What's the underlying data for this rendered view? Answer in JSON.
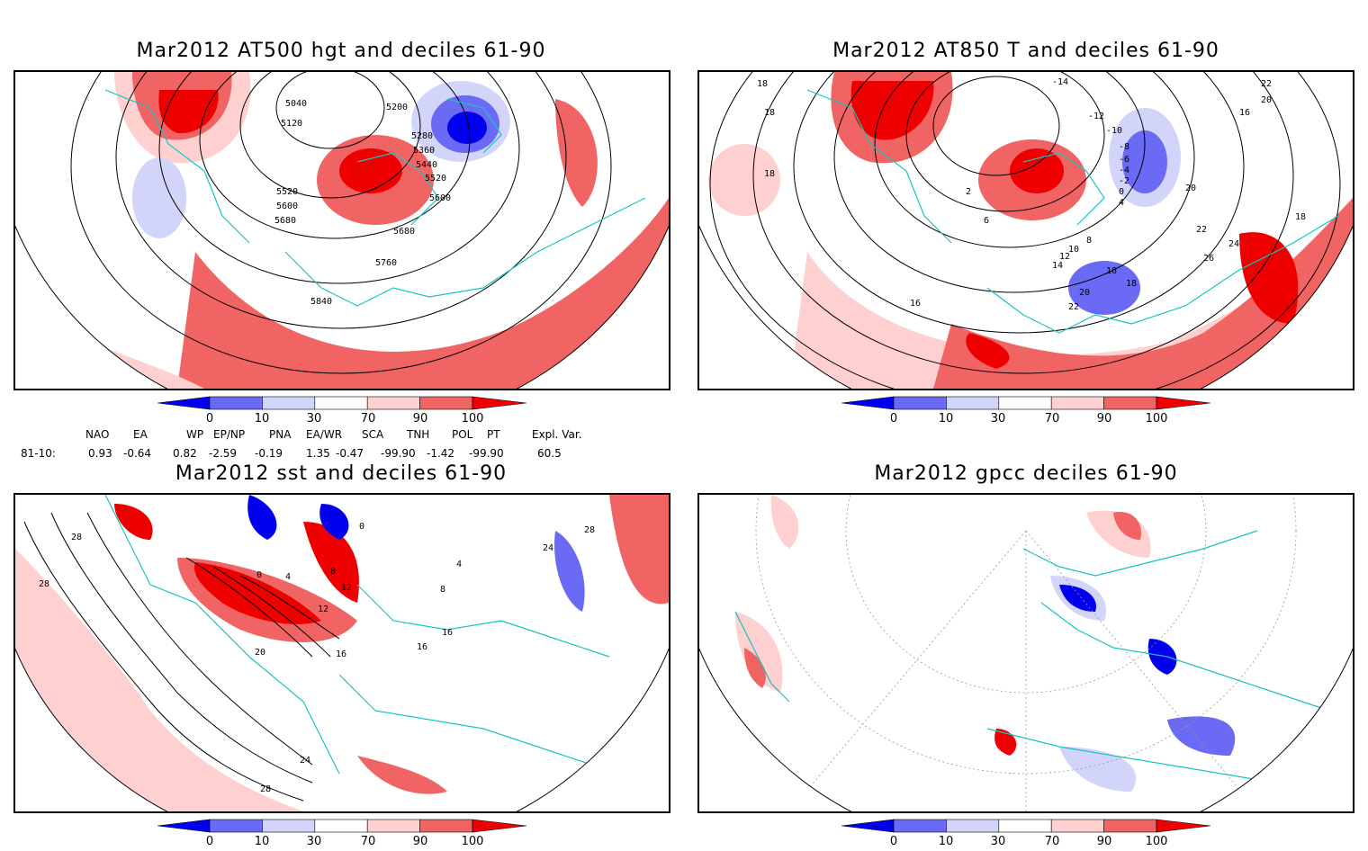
{
  "panels": [
    {
      "title": "Mar2012 AT500 hgt and deciles 61-90",
      "contour_labels": [
        "5040",
        "5120",
        "5200",
        "5280",
        "5360",
        "5440",
        "5520",
        "5600",
        "5680",
        "5520",
        "5600",
        "5680",
        "5760",
        "5840"
      ]
    },
    {
      "title": "Mar2012 AT850 T and deciles 61-90",
      "contour_labels": [
        "-14",
        "-12",
        "-10",
        "-8",
        "-6",
        "-4",
        "-2",
        "0",
        "2",
        "4",
        "6",
        "8",
        "10",
        "12",
        "14",
        "16",
        "18",
        "20",
        "22",
        "24",
        "26",
        "16",
        "18",
        "20",
        "22",
        "18",
        "20",
        "22",
        "18",
        "18",
        "16"
      ]
    },
    {
      "title": "Mar2012 sst and deciles 61-90",
      "contour_labels": [
        "0",
        "4",
        "8",
        "12",
        "16",
        "20",
        "24",
        "28",
        "28",
        "28",
        "24",
        "16",
        "16",
        "8",
        "4",
        "12",
        "0",
        "28"
      ]
    },
    {
      "title": "Mar2012 gpcc deciles 61-90",
      "contour_labels": []
    }
  ],
  "colorbar": {
    "ticks": [
      "0",
      "10",
      "30",
      "70",
      "90",
      "100"
    ],
    "colors": [
      "#0000ee",
      "#6a6af4",
      "#d2d4fa",
      "#ffffff",
      "#ffd0d0",
      "#f06464",
      "#ee0000"
    ]
  },
  "indices": {
    "headers": [
      "NAO",
      "EA",
      "WP",
      "EP/NP",
      "PNA",
      "EA/WR",
      "SCA",
      "TNH",
      "POL",
      "PT",
      "Expl. Var."
    ],
    "row_label": "81-10:",
    "values": [
      "0.93",
      "-0.64",
      "0.82",
      "-2.59",
      "-0.19",
      "1.35",
      "-0.47",
      "-99.90",
      "-1.42",
      "-99.90",
      "60.5"
    ]
  }
}
